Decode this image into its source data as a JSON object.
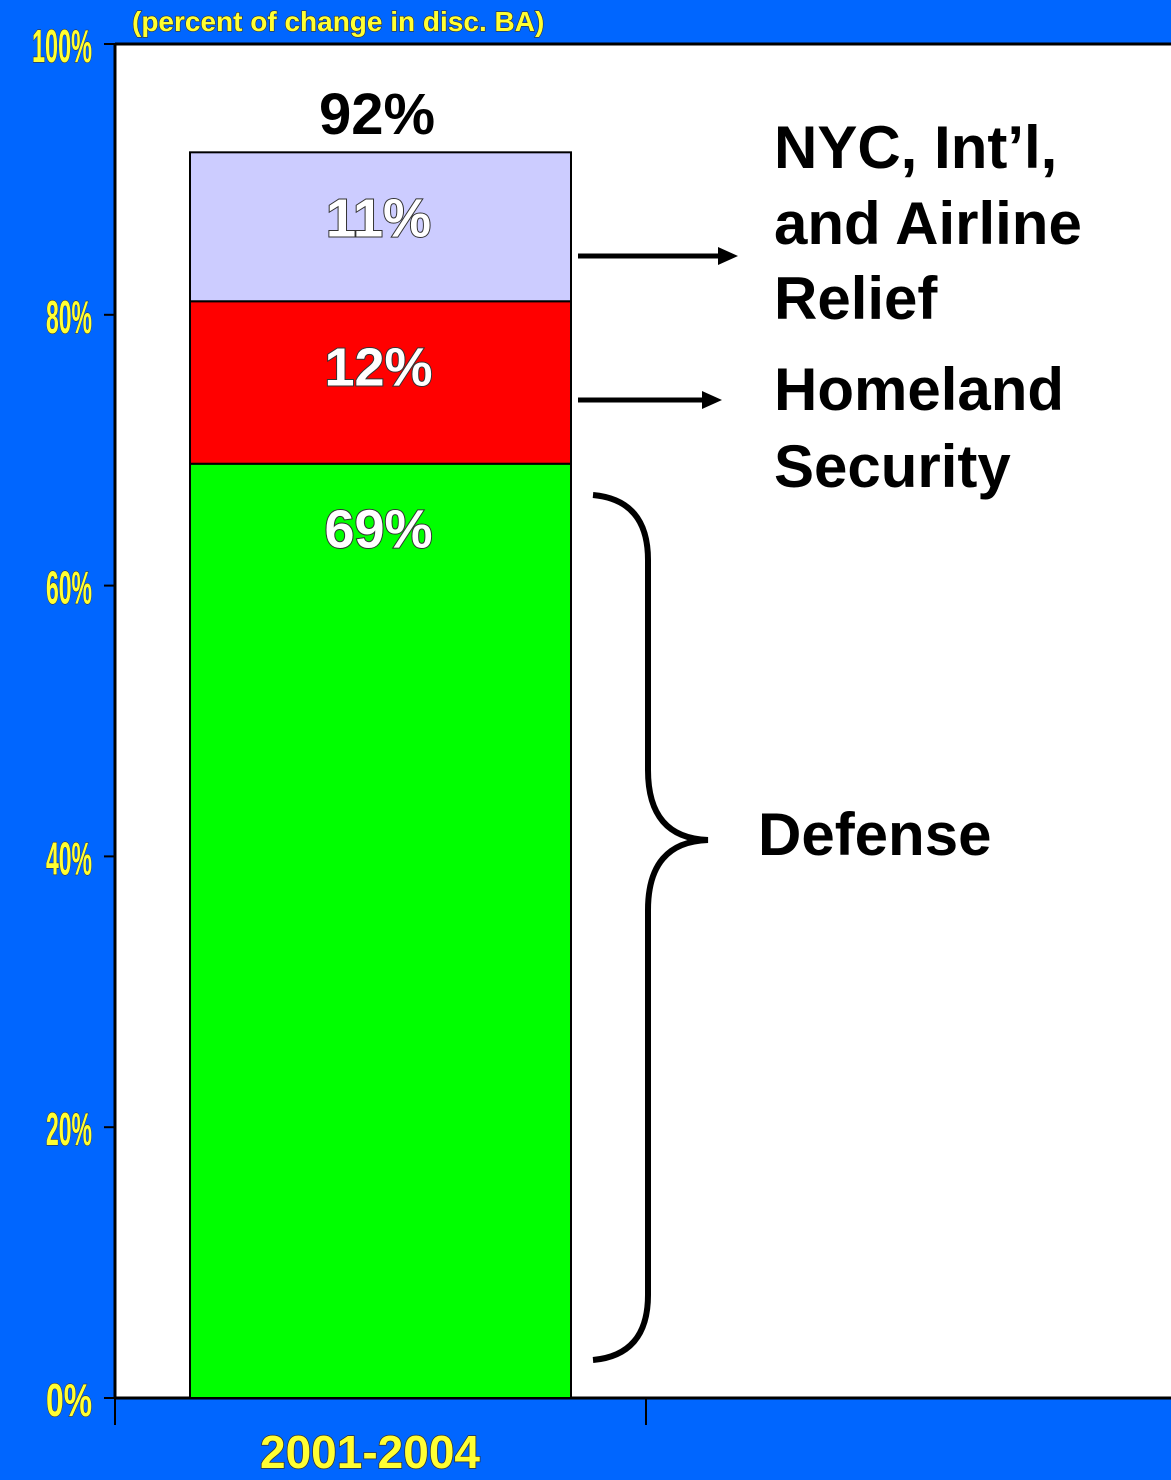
{
  "colors": {
    "background": "#0066ff",
    "plot_area": "#ffffff",
    "axis_text": "#ffff33",
    "segment_outline": "#000000",
    "label_dark": "#000000",
    "label_light": "#ffffff"
  },
  "chart_data": {
    "type": "bar",
    "stacked": true,
    "subtitle": "(percent of change in disc. BA)",
    "categories": [
      "2001-2004"
    ],
    "ylim": [
      0,
      100
    ],
    "yticks": [
      "0%",
      "20%",
      "40%",
      "60%",
      "80%",
      "100%"
    ],
    "total": 92,
    "total_label": "92%",
    "series": [
      {
        "name": "Defense",
        "values": [
          69
        ],
        "label": "69%",
        "color": "#00ff00"
      },
      {
        "name": "Homeland Security",
        "values": [
          12
        ],
        "label": "12%",
        "color": "#ff0000"
      },
      {
        "name": "NYC, Int’l, and Airline Relief",
        "values": [
          11
        ],
        "label": "11%",
        "color": "#ccccff"
      }
    ],
    "annotations": {
      "defense": "Defense",
      "homeland": [
        "Homeland",
        "Security"
      ],
      "relief": [
        "NYC, Int’l,",
        "and Airline",
        "Relief"
      ]
    }
  }
}
